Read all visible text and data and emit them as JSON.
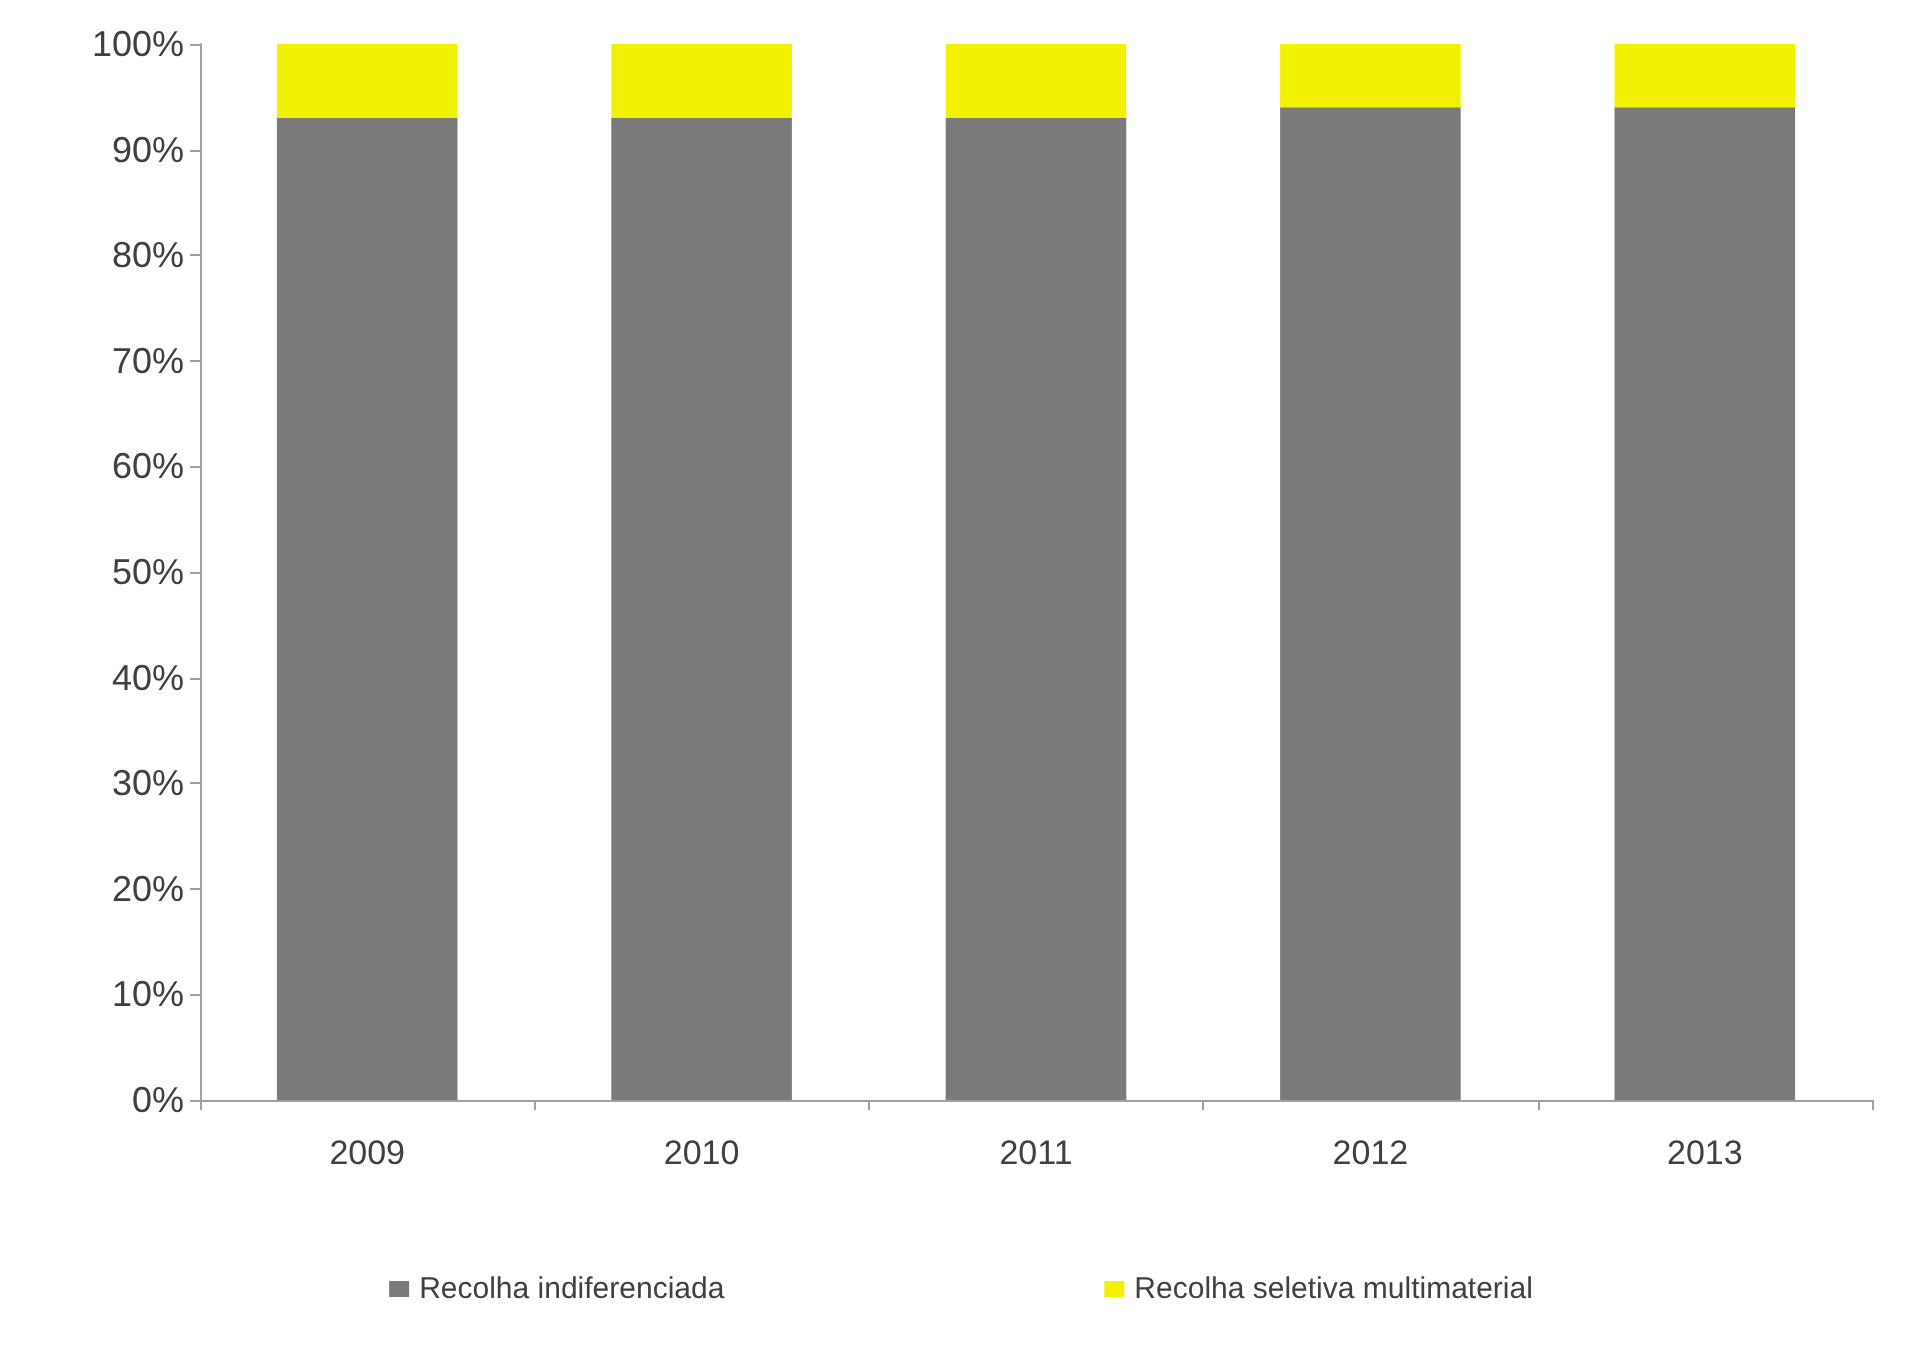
{
  "chart_data": {
    "type": "bar",
    "stacked": true,
    "categories": [
      "2009",
      "2010",
      "2011",
      "2012",
      "2013"
    ],
    "series": [
      {
        "name": "Recolha indiferenciada",
        "color": "#7a7a7a",
        "values": [
          93,
          93,
          93,
          94,
          94
        ]
      },
      {
        "name": "Recolha seletiva multimaterial",
        "color": "#f2f200",
        "values": [
          7,
          7,
          7,
          6,
          6
        ]
      }
    ],
    "ylim": [
      0,
      100
    ],
    "yticks": [
      {
        "value": 0,
        "label": "0%"
      },
      {
        "value": 10,
        "label": "10%"
      },
      {
        "value": 20,
        "label": "20%"
      },
      {
        "value": 30,
        "label": "30%"
      },
      {
        "value": 40,
        "label": "40%"
      },
      {
        "value": 50,
        "label": "50%"
      },
      {
        "value": 60,
        "label": "60%"
      },
      {
        "value": 70,
        "label": "70%"
      },
      {
        "value": 80,
        "label": "80%"
      },
      {
        "value": 90,
        "label": "90%"
      },
      {
        "value": 100,
        "label": "100%"
      }
    ],
    "grid": false,
    "legend": "bottom"
  }
}
